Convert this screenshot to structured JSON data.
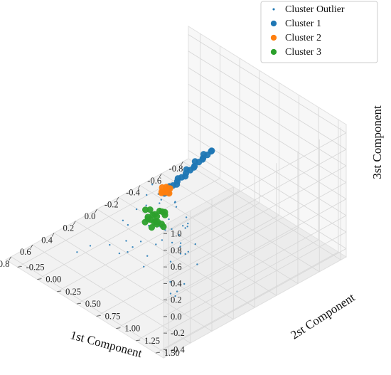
{
  "chart_data": {
    "type": "scatter",
    "projection": "3d",
    "xlabel": "1st Component",
    "ylabel": "2st Component",
    "zlabel": "3st Component",
    "xlim": [
      -0.85,
      0.85
    ],
    "ylim": [
      -0.4,
      1.6
    ],
    "zlim": [
      -0.5,
      1.1
    ],
    "xticks": [
      "-0.8",
      "-0.6",
      "-0.4",
      "-0.2",
      "0.0",
      "0.2",
      "0.4",
      "0.6",
      "0.8"
    ],
    "yticks": [
      "-0.25",
      "0.00",
      "0.25",
      "0.50",
      "0.75",
      "1.00",
      "1.25",
      "1.50"
    ],
    "zticks": [
      "-0.4",
      "-0.2",
      "0.0",
      "0.2",
      "0.4",
      "0.6",
      "0.8",
      "1.0"
    ],
    "grid": true,
    "legend_position": "top-right",
    "series": [
      {
        "name": "Cluster Outlier",
        "color": "#1f77b4",
        "marker_size": "small",
        "points": [
          [
            0.12,
            0.75,
            0.35
          ],
          [
            0.18,
            0.85,
            0.4
          ],
          [
            0.22,
            0.7,
            0.1
          ],
          [
            0.28,
            0.6,
            0.2
          ],
          [
            0.35,
            0.9,
            0.15
          ],
          [
            0.1,
            0.55,
            0.25
          ],
          [
            0.3,
            0.8,
            0.5
          ],
          [
            0.4,
            0.7,
            0.05
          ],
          [
            0.25,
            1.0,
            0.1
          ],
          [
            0.15,
            0.95,
            0.2
          ],
          [
            0.45,
            0.85,
            0.0
          ],
          [
            0.2,
            0.65,
            0.45
          ],
          [
            0.33,
            0.55,
            0.3
          ],
          [
            0.38,
            0.95,
            0.35
          ],
          [
            0.05,
            0.8,
            0.15
          ],
          [
            0.5,
            0.65,
            0.1
          ],
          [
            0.28,
            1.1,
            0.05
          ],
          [
            0.12,
            0.45,
            0.05
          ],
          [
            0.42,
            0.5,
            0.2
          ],
          [
            0.18,
            0.9,
            -0.05
          ],
          [
            0.35,
            0.7,
            0.45
          ],
          [
            0.48,
            1.0,
            0.25
          ],
          [
            0.22,
            0.6,
            0.55
          ],
          [
            0.08,
            0.7,
            0.3
          ],
          [
            0.55,
            0.8,
            0.15
          ],
          [
            0.3,
            0.4,
            0.0
          ],
          [
            0.25,
            0.85,
            0.3
          ],
          [
            0.45,
            0.6,
            -0.1
          ],
          [
            0.15,
            0.75,
            0.05
          ],
          [
            0.38,
            1.05,
            0.0
          ],
          [
            0.6,
            0.7,
            0.05
          ],
          [
            0.2,
            0.5,
            0.35
          ],
          [
            0.32,
            0.9,
            0.25
          ],
          [
            0.52,
            0.9,
            -0.05
          ],
          [
            0.1,
            0.6,
            0.4
          ],
          [
            0.4,
            0.8,
            0.3
          ],
          [
            0.65,
            0.4,
            0.0
          ],
          [
            0.7,
            0.3,
            -0.1
          ],
          [
            0.58,
            0.55,
            0.05
          ],
          [
            0.55,
            1.5,
            0.85
          ],
          [
            0.56,
            1.45,
            0.8
          ],
          [
            0.5,
            1.4,
            0.7
          ],
          [
            0.52,
            1.35,
            0.6
          ],
          [
            0.48,
            1.5,
            0.55
          ],
          [
            0.55,
            1.3,
            0.5
          ],
          [
            0.51,
            1.45,
            0.45
          ],
          [
            0.53,
            1.38,
            0.4
          ],
          [
            0.5,
            1.55,
            0.35
          ],
          [
            0.62,
            1.55,
            0.2
          ],
          [
            0.65,
            1.5,
            0.1
          ],
          [
            0.63,
            1.45,
            0.0
          ],
          [
            0.6,
            1.35,
            -0.05
          ],
          [
            0.64,
            1.4,
            0.15
          ]
        ]
      },
      {
        "name": "Cluster 1",
        "color": "#1f77b4",
        "marker_size": "large",
        "points": [
          [
            -0.7,
            0.1,
            0.0
          ],
          [
            -0.66,
            0.1,
            -0.02
          ],
          [
            -0.62,
            0.1,
            -0.03
          ],
          [
            -0.58,
            0.1,
            -0.05
          ],
          [
            -0.54,
            0.1,
            -0.07
          ],
          [
            -0.5,
            0.1,
            -0.09
          ],
          [
            -0.46,
            0.1,
            -0.1
          ],
          [
            -0.42,
            0.1,
            -0.12
          ],
          [
            -0.38,
            0.1,
            -0.14
          ],
          [
            -0.34,
            0.1,
            -0.16
          ],
          [
            -0.3,
            0.1,
            -0.18
          ],
          [
            -0.26,
            0.1,
            -0.2
          ],
          [
            -0.68,
            0.12,
            0.02
          ],
          [
            -0.64,
            0.08,
            -0.01
          ],
          [
            -0.6,
            0.12,
            -0.02
          ],
          [
            -0.56,
            0.08,
            -0.04
          ],
          [
            -0.52,
            0.12,
            -0.06
          ],
          [
            -0.48,
            0.08,
            -0.08
          ],
          [
            -0.44,
            0.12,
            -0.11
          ],
          [
            -0.4,
            0.08,
            -0.13
          ],
          [
            -0.36,
            0.12,
            -0.15
          ],
          [
            -0.32,
            0.08,
            -0.17
          ],
          [
            -0.28,
            0.12,
            -0.19
          ]
        ]
      },
      {
        "name": "Cluster 2",
        "color": "#ff7f0e",
        "marker_size": "large",
        "points": [
          [
            -0.12,
            0.3,
            0.05
          ],
          [
            -0.1,
            0.32,
            0.07
          ],
          [
            -0.14,
            0.28,
            0.04
          ],
          [
            -0.09,
            0.34,
            0.08
          ],
          [
            -0.13,
            0.3,
            0.09
          ],
          [
            -0.11,
            0.27,
            0.03
          ],
          [
            -0.08,
            0.31,
            0.06
          ],
          [
            -0.12,
            0.35,
            0.05
          ],
          [
            -0.15,
            0.32,
            0.07
          ],
          [
            -0.1,
            0.29,
            0.1
          ]
        ]
      },
      {
        "name": "Cluster 3",
        "color": "#2ca02c",
        "marker_size": "large",
        "points": [
          [
            0.05,
            0.4,
            -0.05
          ],
          [
            0.08,
            0.45,
            -0.08
          ],
          [
            0.02,
            0.42,
            -0.02
          ],
          [
            0.1,
            0.38,
            -0.06
          ],
          [
            0.06,
            0.5,
            -0.1
          ],
          [
            0.12,
            0.44,
            -0.04
          ],
          [
            0.04,
            0.36,
            -0.09
          ],
          [
            0.09,
            0.48,
            0.0
          ],
          [
            0.0,
            0.46,
            -0.06
          ],
          [
            0.14,
            0.4,
            -0.08
          ],
          [
            0.07,
            0.42,
            -0.12
          ],
          [
            0.11,
            0.52,
            -0.03
          ],
          [
            0.03,
            0.5,
            0.02
          ],
          [
            0.13,
            0.47,
            -0.11
          ],
          [
            0.05,
            0.34,
            -0.03
          ],
          [
            0.15,
            0.45,
            -0.01
          ],
          [
            -0.02,
            0.4,
            -0.07
          ],
          [
            0.08,
            0.55,
            -0.09
          ],
          [
            0.1,
            0.35,
            0.01
          ],
          [
            0.06,
            0.44,
            -0.14
          ]
        ]
      }
    ]
  }
}
